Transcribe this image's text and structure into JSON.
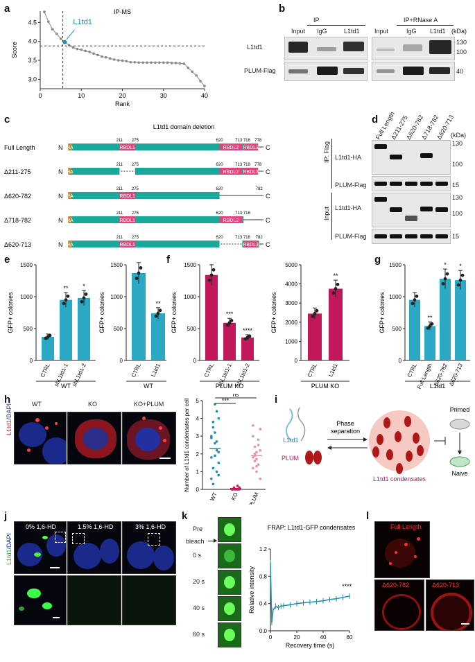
{
  "panels": {
    "a": "a",
    "b": "b",
    "c": "c",
    "d": "d",
    "e": "e",
    "f": "f",
    "g": "g",
    "h": "h",
    "i": "i",
    "j": "j",
    "k": "k",
    "l": "l"
  },
  "panel_a": {
    "title": "IP-MS",
    "highlight_label": "L1td1",
    "xlabel": "Rank",
    "ylabel": "Score",
    "x_ticks": [
      "0",
      "10",
      "20",
      "30",
      "40"
    ],
    "y_ticks": [
      "3.0",
      "3.5",
      "4.0",
      "4.5"
    ]
  },
  "panel_b": {
    "headers": [
      "IP",
      "IP+RNase A"
    ],
    "lanes_left": [
      "Input",
      "IgG",
      "L1td1"
    ],
    "lanes_right": [
      "Input",
      "IgG",
      "L1td1"
    ],
    "rows": [
      "L1td1",
      "PLUM-Flag"
    ],
    "kda_label": "(kDa)",
    "markers": [
      "130",
      "100",
      "40"
    ]
  },
  "panel_c": {
    "title": "L1td1 domain deletion",
    "constructs": [
      {
        "name": "Full Length",
        "tick_labels": [
          "211",
          "275",
          "620",
          "713 718",
          "778"
        ],
        "domains": [
          "HA",
          "RBDL1",
          "RBDL2",
          "RBDL3"
        ]
      },
      {
        "name": "Δ211-275",
        "tick_labels": [
          "211",
          "275",
          "620",
          "713 718",
          "778"
        ],
        "domains": [
          "HA",
          "RBDL2",
          "RBDL3"
        ]
      },
      {
        "name": "Δ620-782",
        "tick_labels": [
          "211",
          "275",
          "620",
          "782"
        ],
        "domains": [
          "HA",
          "RBDL1"
        ]
      },
      {
        "name": "Δ718-782",
        "tick_labels": [
          "211",
          "275",
          "620",
          "713 718"
        ],
        "domains": [
          "HA",
          "RBDL1",
          "RBDL2"
        ]
      },
      {
        "name": "Δ620-713",
        "tick_labels": [
          "211",
          "275",
          "620",
          "713 718",
          "782"
        ],
        "domains": [
          "HA",
          "RBDL1",
          "RBDL3"
        ]
      }
    ],
    "n_term": "N",
    "c_term": "C"
  },
  "panel_d": {
    "lanes": [
      "Full Length",
      "Δ211-275",
      "Δ620-782",
      "Δ718-782",
      "Δ620-713"
    ],
    "kda_label": "(kDa)",
    "sections": [
      "IP: Flag",
      "Input"
    ],
    "rows": [
      "L1td1-HA",
      "PLUM-Flag",
      "L1td1-HA",
      "PLUM-Flag"
    ],
    "markers": [
      "130",
      "100",
      "15",
      "130",
      "100",
      "15"
    ]
  },
  "chart_data": [
    {
      "id": "e1",
      "type": "bar",
      "ylabel": "GFP+ colonies",
      "categories": [
        "CTRL",
        "shL1td1-1",
        "shL1td1-2"
      ],
      "values": [
        370,
        950,
        980
      ],
      "ylim": [
        0,
        1500
      ],
      "y_ticks": [
        "0",
        "500",
        "1000",
        "1500"
      ],
      "significance": [
        "",
        "**",
        "*"
      ],
      "group_label": "WT",
      "color": "#2aa8c4"
    },
    {
      "id": "e2",
      "type": "bar",
      "ylabel": "GFP+ colonies",
      "categories": [
        "CTRL",
        "L1td1"
      ],
      "values": [
        1370,
        740
      ],
      "ylim": [
        0,
        1500
      ],
      "y_ticks": [
        "0",
        "500",
        "1000",
        "1500"
      ],
      "significance": [
        "",
        "**"
      ],
      "group_label": "WT",
      "color": "#2aa8c4"
    },
    {
      "id": "f1",
      "type": "bar",
      "ylabel": "GFP+ colonies",
      "categories": [
        "CTRL",
        "shL1td1-1",
        "shL1td1-2"
      ],
      "values": [
        1340,
        590,
        360
      ],
      "ylim": [
        0,
        1500
      ],
      "y_ticks": [
        "0",
        "500",
        "1000",
        "1500"
      ],
      "significance": [
        "",
        "***",
        "****"
      ],
      "group_label": "PLUM KO",
      "color": "#c2185b"
    },
    {
      "id": "f2",
      "type": "bar",
      "ylabel": "GFP+ colonies",
      "categories": [
        "CTRL",
        "L1td1"
      ],
      "values": [
        2450,
        3750
      ],
      "ylim": [
        0,
        5000
      ],
      "y_ticks": [
        "0",
        "1000",
        "2000",
        "3000",
        "4000",
        "5000"
      ],
      "significance": [
        "",
        "**"
      ],
      "group_label": "PLUM KO",
      "color": "#c2185b"
    },
    {
      "id": "g",
      "type": "bar",
      "ylabel": "GFP+ colonies",
      "categories": [
        "CTRL",
        "Full Length",
        "Δ620-782",
        "Δ620-713"
      ],
      "values": [
        950,
        540,
        1280,
        1260
      ],
      "ylim": [
        0,
        1500
      ],
      "y_ticks": [
        "0",
        "500",
        "1000",
        "1500"
      ],
      "significance": [
        "",
        "**",
        "*",
        "*"
      ],
      "group_label": "L1td1",
      "color": "#2aa8c4"
    },
    {
      "id": "h",
      "type": "scatter",
      "ylabel": "Number of L1td1 condensates per cell",
      "categories": [
        "WT",
        "KO",
        "KO+PLUM"
      ],
      "means": [
        2.3,
        0.05,
        1.9
      ],
      "ylim": [
        0,
        5
      ],
      "y_ticks": [
        "0",
        "1",
        "2",
        "3",
        "4",
        "5"
      ],
      "comparisons": [
        "***",
        "ns"
      ],
      "colors": [
        "#1a8fae",
        "#c2185b",
        "#f08fa0"
      ]
    },
    {
      "id": "k",
      "type": "line",
      "title": "FRAP: L1td1-GFP condensates",
      "xlabel": "Recovery time (s)",
      "ylabel": "Relative intensity",
      "x": [
        0,
        1,
        2,
        4,
        6,
        8,
        10,
        15,
        20,
        25,
        30,
        35,
        40,
        45,
        50,
        55,
        60
      ],
      "y": [
        1.0,
        0.12,
        0.3,
        0.36,
        0.34,
        0.36,
        0.37,
        0.38,
        0.4,
        0.41,
        0.42,
        0.43,
        0.44,
        0.46,
        0.47,
        0.49,
        0.51
      ],
      "xlim": [
        0,
        60
      ],
      "ylim": [
        0,
        1.2
      ],
      "x_ticks": [
        "0",
        "20",
        "40",
        "60"
      ],
      "y_ticks": [
        "0.0",
        "0.4",
        "0.8",
        "1.2"
      ],
      "significance": "****",
      "color": "#1a8fae"
    }
  ],
  "panel_h": {
    "labels": [
      "WT",
      "KO",
      "KO+PLUM"
    ],
    "side_label_a": "L1td1",
    "side_label_b": "/DAPI"
  },
  "panel_i": {
    "l1td1": "L1td1",
    "plum": "PLUM",
    "arrow_label_1": "Phase",
    "arrow_label_2": "separation",
    "condensate_label": "L1td1 condensates",
    "primed": "Primed",
    "naive": "Naive"
  },
  "panel_j": {
    "conditions": [
      "0% 1,6-HD",
      "1.5% 1,6-HD",
      "3% 1,6-HD"
    ],
    "side_label_a": "L1td1",
    "side_label_b": "/DAPI"
  },
  "panel_k": {
    "timepoints": [
      "Pre",
      "0 s",
      "20 s",
      "40 s",
      "60 s"
    ],
    "bleach_label": "bleach"
  },
  "panel_l": {
    "labels": [
      "Full Length",
      "Δ620-782",
      "Δ620-713"
    ]
  }
}
